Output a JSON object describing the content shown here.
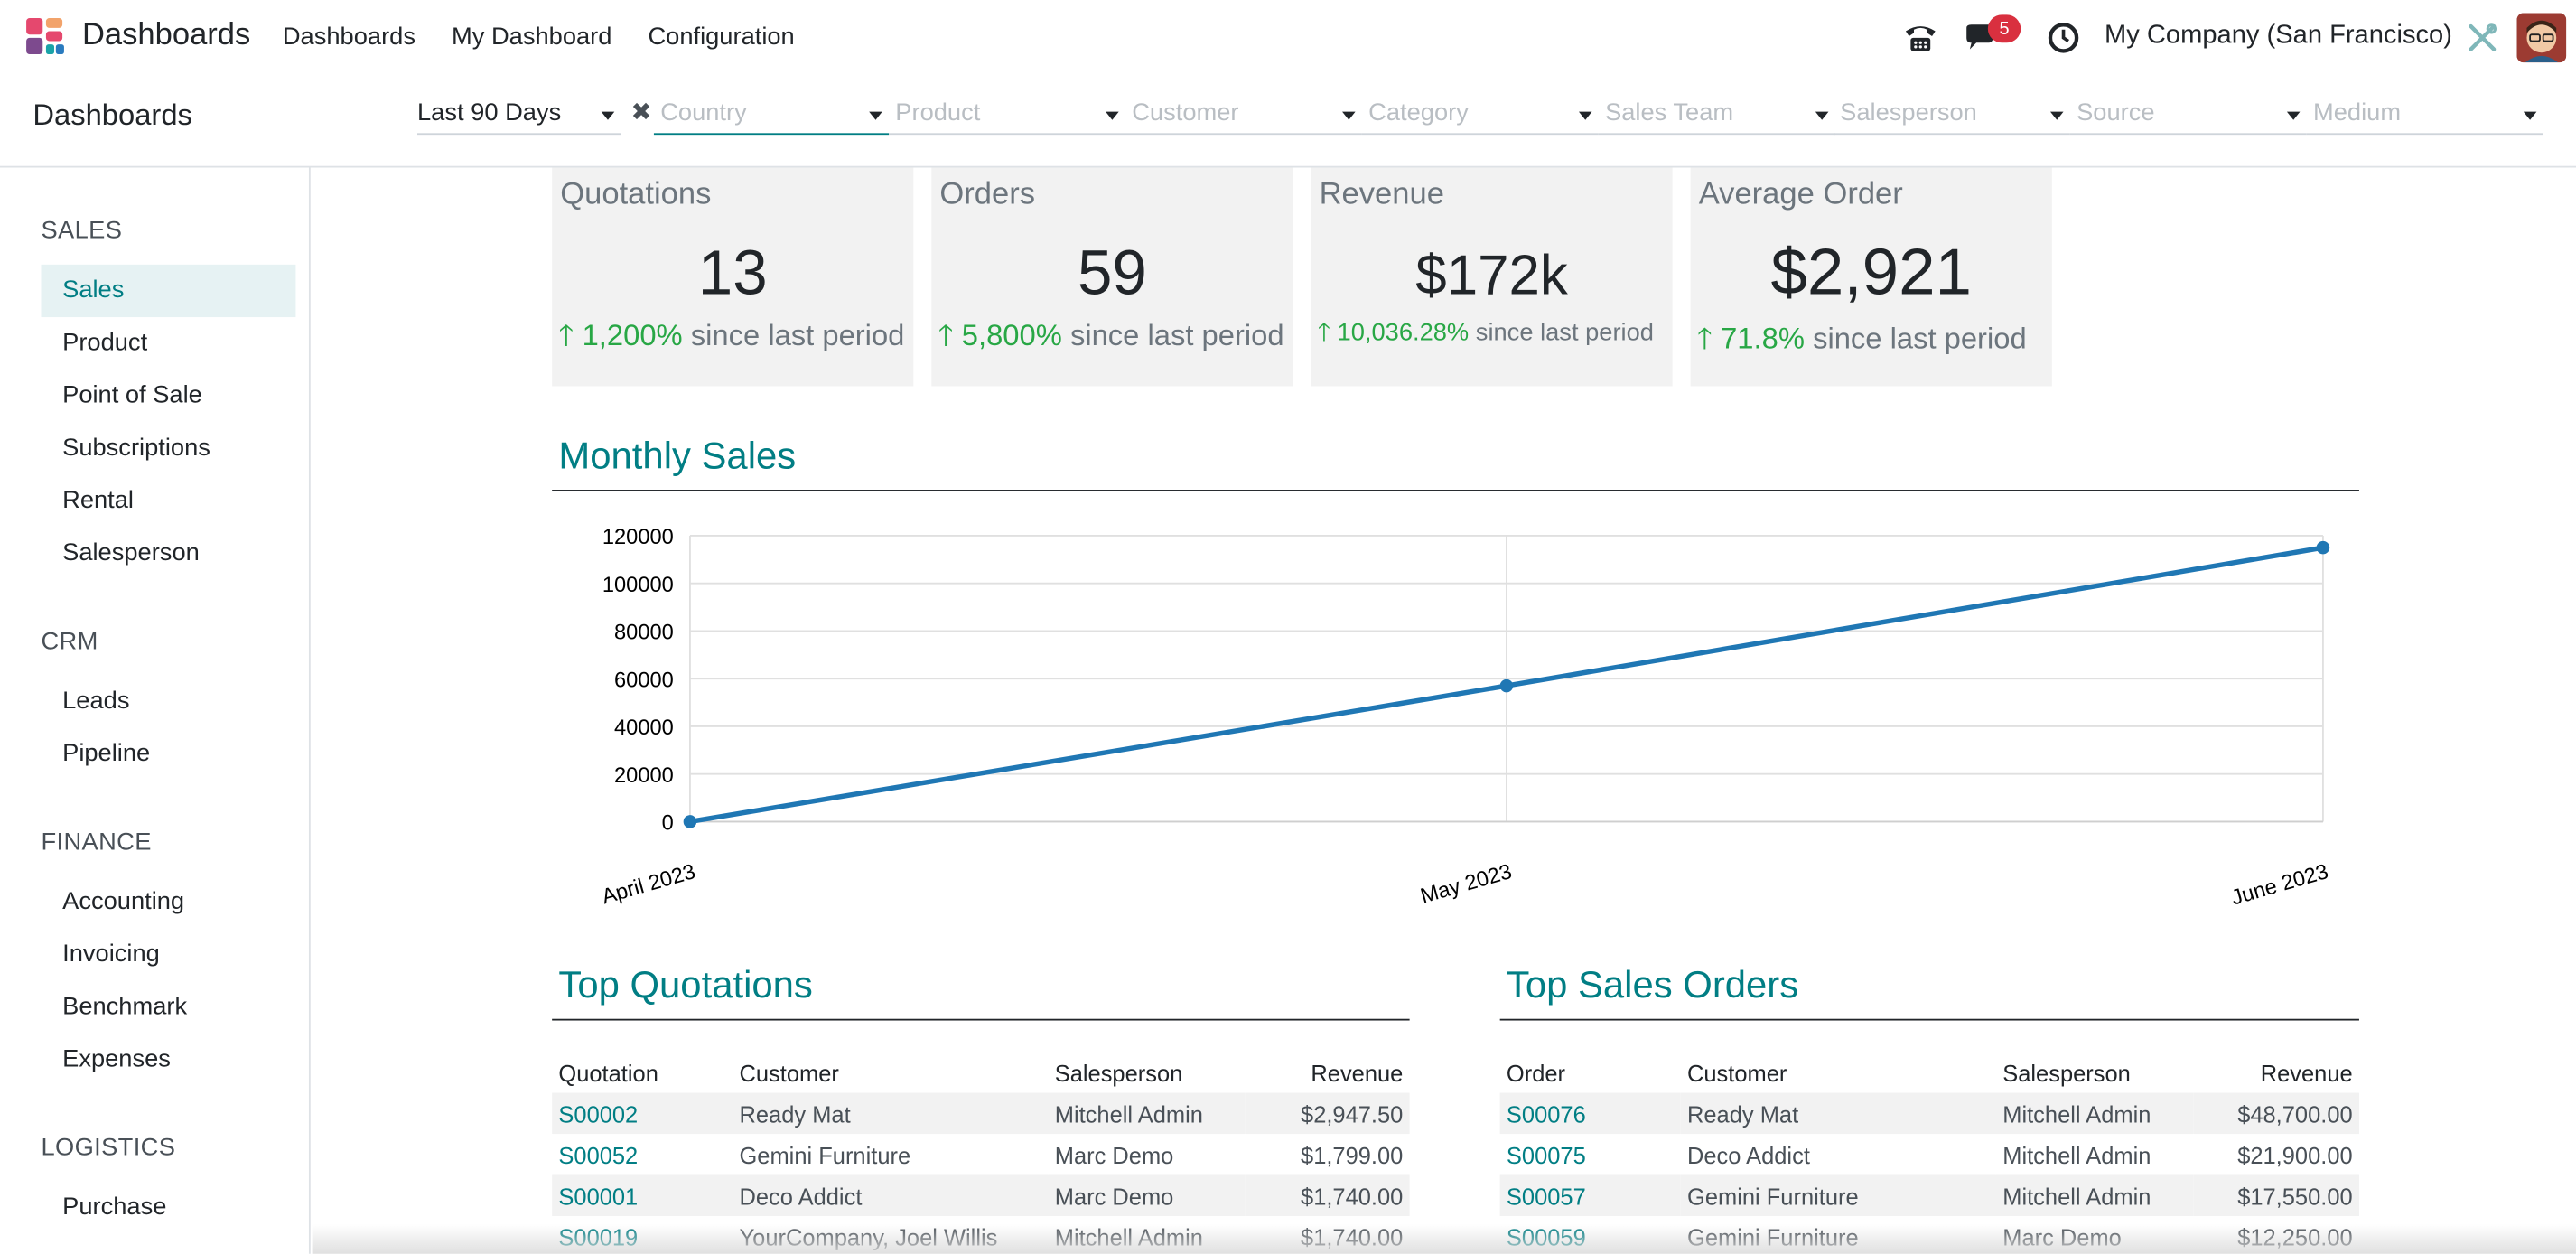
{
  "topbar": {
    "app_title": "Dashboards",
    "menu": [
      "Dashboards",
      "My Dashboard",
      "Configuration"
    ],
    "notification_count": "5",
    "company": "My Company (San Francisco)"
  },
  "control": {
    "breadcrumb": "Dashboards",
    "filters": [
      {
        "label": "Last 90 Days",
        "kind": "value"
      },
      {
        "label": "Country",
        "kind": "placeholder"
      },
      {
        "label": "Product",
        "kind": "placeholder"
      },
      {
        "label": "Customer",
        "kind": "placeholder"
      },
      {
        "label": "Category",
        "kind": "placeholder"
      },
      {
        "label": "Sales Team",
        "kind": "placeholder"
      },
      {
        "label": "Salesperson",
        "kind": "placeholder"
      },
      {
        "label": "Source",
        "kind": "placeholder"
      },
      {
        "label": "Medium",
        "kind": "placeholder"
      }
    ]
  },
  "sidebar": {
    "sections": [
      {
        "title": "SALES",
        "items": [
          "Sales",
          "Product",
          "Point of Sale",
          "Subscriptions",
          "Rental",
          "Salesperson"
        ]
      },
      {
        "title": "CRM",
        "items": [
          "Leads",
          "Pipeline"
        ]
      },
      {
        "title": "FINANCE",
        "items": [
          "Accounting",
          "Invoicing",
          "Benchmark",
          "Expenses"
        ]
      },
      {
        "title": "LOGISTICS",
        "items": [
          "Purchase"
        ]
      }
    ],
    "active_item": "Sales"
  },
  "kpis": [
    {
      "title": "Quotations",
      "value": "13",
      "pct": "1,200%",
      "suffix": "since last period"
    },
    {
      "title": "Orders",
      "value": "59",
      "pct": "5,800%",
      "suffix": "since last period"
    },
    {
      "title": "Revenue",
      "value": "$172k",
      "pct": "10,036.28%",
      "suffix": "since last period"
    },
    {
      "title": "Average Order",
      "value": "$2,921",
      "pct": "71.8%",
      "suffix": "since last period"
    }
  ],
  "monthly_sales": {
    "title": "Monthly Sales"
  },
  "chart_data": {
    "type": "line",
    "categories": [
      "April 2023",
      "May 2023",
      "June 2023"
    ],
    "series": [
      {
        "values": [
          0,
          57000,
          115000
        ]
      }
    ],
    "yticks": [
      0,
      20000,
      40000,
      60000,
      80000,
      100000,
      120000
    ],
    "ylim": [
      0,
      120000
    ],
    "grid": true,
    "color": "#1f77b4"
  },
  "top_quotations": {
    "title": "Top Quotations",
    "columns": [
      "Quotation",
      "Customer",
      "Salesperson",
      "Revenue"
    ],
    "rows": [
      [
        "S00002",
        "Ready Mat",
        "Mitchell Admin",
        "$2,947.50"
      ],
      [
        "S00052",
        "Gemini Furniture",
        "Marc Demo",
        "$1,799.00"
      ],
      [
        "S00001",
        "Deco Addict",
        "Marc Demo",
        "$1,740.00"
      ],
      [
        "S00019",
        "YourCompany, Joel Willis",
        "Mitchell Admin",
        "$1,740.00"
      ]
    ]
  },
  "top_sales_orders": {
    "title": "Top Sales Orders",
    "columns": [
      "Order",
      "Customer",
      "Salesperson",
      "Revenue"
    ],
    "rows": [
      [
        "S00076",
        "Ready Mat",
        "Mitchell Admin",
        "$48,700.00"
      ],
      [
        "S00075",
        "Deco Addict",
        "Mitchell Admin",
        "$21,900.00"
      ],
      [
        "S00057",
        "Gemini Furniture",
        "Mitchell Admin",
        "$17,550.00"
      ],
      [
        "S00059",
        "Gemini Furniture",
        "Marc Demo",
        "$12,250.00"
      ]
    ]
  },
  "icons": {
    "app_logo": "dashboards-app-icon",
    "phone": "phone-icon",
    "chat": "chat-icon",
    "activity": "clock-icon",
    "tools": "tools-icon",
    "avatar": "user-avatar"
  }
}
